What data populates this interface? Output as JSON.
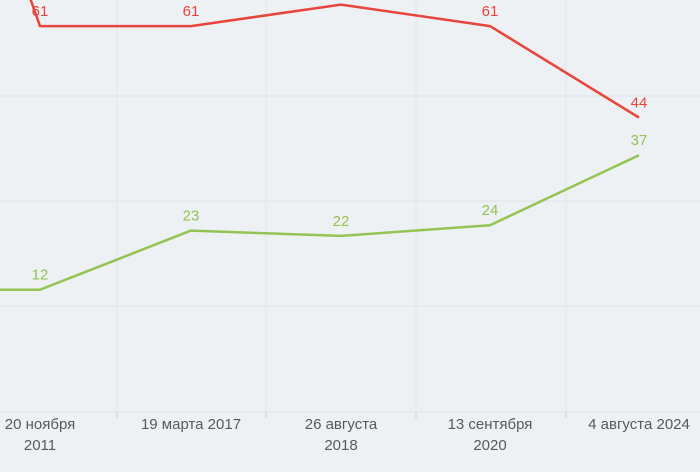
{
  "chart_data": {
    "type": "line",
    "categories": [
      "20 ноября 2011",
      "19 марта 2017",
      "26 августа 2018",
      "13 сентября 2020",
      "4 августа 2024"
    ],
    "category_lines": [
      [
        "20 ноября",
        "2011"
      ],
      [
        "19 марта 2017"
      ],
      [
        "26 августа",
        "2018"
      ],
      [
        "13 сентября",
        "2020"
      ],
      [
        "4 августа 2024"
      ]
    ],
    "series": [
      {
        "values": [
          61,
          61,
          65,
          61,
          44
        ],
        "color": "#e8453c"
      },
      {
        "values": [
          12,
          23,
          22,
          24,
          37
        ],
        "color": "#94c354"
      }
    ],
    "grid": true,
    "legend": "none"
  }
}
